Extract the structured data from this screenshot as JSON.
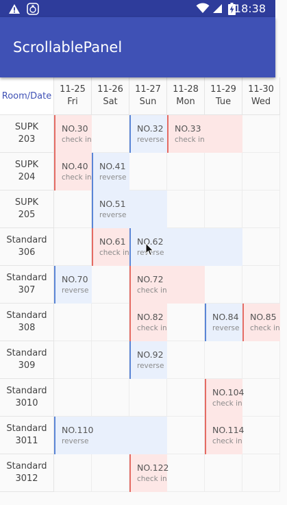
{
  "statusbar": {
    "time": "18:38",
    "icons": [
      "warning-icon",
      "notification-app-icon",
      "wifi-icon",
      "signal-icon",
      "battery-charging-icon"
    ],
    "bg": "#2e3c9b"
  },
  "appbar": {
    "title": "ScrollablePanel",
    "bg": "#3f51b5"
  },
  "table": {
    "corner_label": "Room/Date",
    "dates": [
      {
        "date": "11-25",
        "day": "Fri"
      },
      {
        "date": "11-26",
        "day": "Sat"
      },
      {
        "date": "11-27",
        "day": "Sun"
      },
      {
        "date": "11-28",
        "day": "Mon"
      },
      {
        "date": "11-29",
        "day": "Tue"
      },
      {
        "date": "11-30",
        "day": "Wed"
      }
    ],
    "rooms": [
      {
        "type": "SUPK",
        "number": "203"
      },
      {
        "type": "SUPK",
        "number": "204"
      },
      {
        "type": "SUPK",
        "number": "205"
      },
      {
        "type": "Standard",
        "number": "306"
      },
      {
        "type": "Standard",
        "number": "307"
      },
      {
        "type": "Standard",
        "number": "308"
      },
      {
        "type": "Standard",
        "number": "309"
      },
      {
        "type": "Standard",
        "number": "3010"
      },
      {
        "type": "Standard",
        "number": "3011"
      },
      {
        "type": "Standard",
        "number": "3012"
      }
    ],
    "bookings": [
      {
        "row": 0,
        "col": 0,
        "span": 1,
        "number": "NO.30",
        "status": "check in",
        "kind": "checkin"
      },
      {
        "row": 0,
        "col": 2,
        "span": 1,
        "number": "NO.32",
        "status": "reverse",
        "kind": "reverse"
      },
      {
        "row": 0,
        "col": 3,
        "span": 2,
        "number": "NO.33",
        "status": "check in",
        "kind": "checkin"
      },
      {
        "row": 1,
        "col": 0,
        "span": 1,
        "number": "NO.40",
        "status": "check in",
        "kind": "checkin"
      },
      {
        "row": 1,
        "col": 1,
        "span": 1,
        "number": "NO.41",
        "status": "reverse",
        "kind": "reverse"
      },
      {
        "row": 2,
        "col": 1,
        "span": 2,
        "number": "NO.51",
        "status": "reverse",
        "kind": "reverse"
      },
      {
        "row": 3,
        "col": 1,
        "span": 1,
        "number": "NO.61",
        "status": "check in",
        "kind": "checkin"
      },
      {
        "row": 3,
        "col": 2,
        "span": 3,
        "number": "NO.62",
        "status": "reverse",
        "kind": "reverse"
      },
      {
        "row": 4,
        "col": 0,
        "span": 1,
        "number": "NO.70",
        "status": "reverse",
        "kind": "reverse"
      },
      {
        "row": 4,
        "col": 2,
        "span": 2,
        "number": "NO.72",
        "status": "check in",
        "kind": "checkin"
      },
      {
        "row": 5,
        "col": 2,
        "span": 1,
        "number": "NO.82",
        "status": "check in",
        "kind": "checkin"
      },
      {
        "row": 5,
        "col": 4,
        "span": 1,
        "number": "NO.84",
        "status": "reverse",
        "kind": "reverse"
      },
      {
        "row": 5,
        "col": 5,
        "span": 1,
        "number": "NO.85",
        "status": "check in",
        "kind": "checkin"
      },
      {
        "row": 6,
        "col": 2,
        "span": 1,
        "number": "NO.92",
        "status": "reverse",
        "kind": "reverse"
      },
      {
        "row": 7,
        "col": 4,
        "span": 1,
        "number": "NO.104",
        "status": "check in",
        "kind": "checkin"
      },
      {
        "row": 8,
        "col": 0,
        "span": 3,
        "number": "NO.110",
        "status": "reverse",
        "kind": "reverse"
      },
      {
        "row": 8,
        "col": 4,
        "span": 1,
        "number": "NO.114",
        "status": "check in",
        "kind": "checkin"
      },
      {
        "row": 9,
        "col": 2,
        "span": 1,
        "number": "NO.122",
        "status": "check in",
        "kind": "checkin"
      }
    ]
  },
  "colors": {
    "checkin_bg": "#fde7e6",
    "checkin_border": "#e46b63",
    "reverse_bg": "#e9f0fc",
    "reverse_border": "#5a85d6",
    "accent": "#3f51b5"
  }
}
